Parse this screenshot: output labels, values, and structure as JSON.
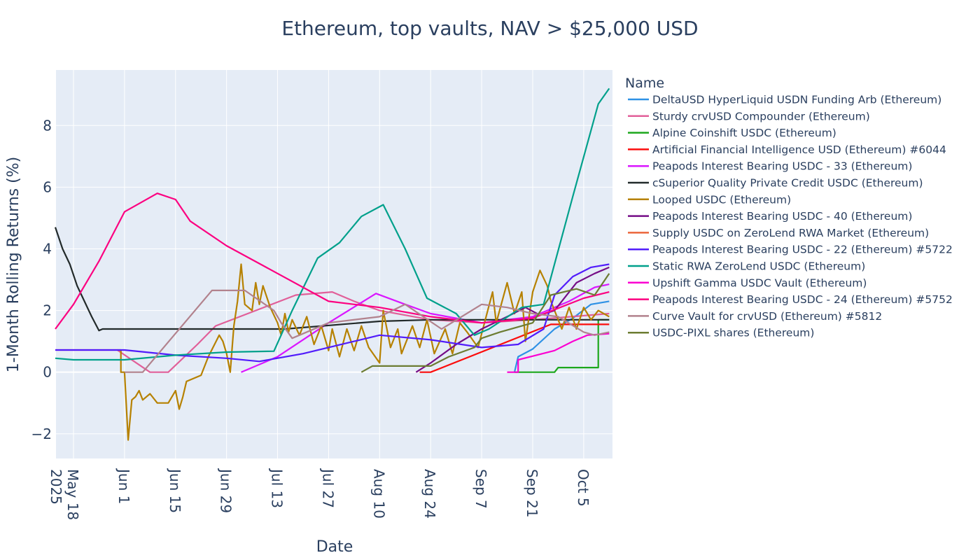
{
  "chart_data": {
    "type": "line",
    "title": "Ethereum, top vaults, NAV > $25,000 USD",
    "xlabel": "Date",
    "ylabel": "1-Month Rolling Returns (%)",
    "xlim": [
      "2025-05-13",
      "2025-10-13"
    ],
    "ylim": [
      -2.8,
      9.8
    ],
    "grid": true,
    "plot_background": "#E5ECF6",
    "legend": {
      "title": "Name",
      "placement": "right"
    },
    "x_ticks": [
      {
        "date": "2025-05-18",
        "label": "May 18",
        "sublabel": "2025"
      },
      {
        "date": "2025-06-01",
        "label": "Jun 1"
      },
      {
        "date": "2025-06-15",
        "label": "Jun 15"
      },
      {
        "date": "2025-06-29",
        "label": "Jun 29"
      },
      {
        "date": "2025-07-13",
        "label": "Jul 13"
      },
      {
        "date": "2025-07-27",
        "label": "Jul 27"
      },
      {
        "date": "2025-08-10",
        "label": "Aug 10"
      },
      {
        "date": "2025-08-24",
        "label": "Aug 24"
      },
      {
        "date": "2025-09-07",
        "label": "Sep 7"
      },
      {
        "date": "2025-09-21",
        "label": "Sep 21"
      },
      {
        "date": "2025-10-05",
        "label": "Oct 5"
      }
    ],
    "y_ticks": [
      {
        "value": -2,
        "label": "−2"
      },
      {
        "value": 0,
        "label": "0"
      },
      {
        "value": 2,
        "label": "2"
      },
      {
        "value": 4,
        "label": "4"
      },
      {
        "value": 6,
        "label": "6"
      },
      {
        "value": 8,
        "label": "8"
      }
    ],
    "series": [
      {
        "name": "DeltaUSD HyperLiquid USDN Funding Arb (Ethereum)",
        "color": "#2E91E5",
        "points": [
          [
            "2025-09-16",
            0
          ],
          [
            "2025-09-17",
            0.5
          ],
          [
            "2025-09-21",
            0.75
          ],
          [
            "2025-09-27",
            1.4
          ],
          [
            "2025-10-02",
            1.75
          ],
          [
            "2025-10-07",
            2.2
          ],
          [
            "2025-10-12",
            2.3
          ]
        ]
      },
      {
        "name": "Sturdy crvUSD Compounder (Ethereum)",
        "color": "#E15F99",
        "points": [
          [
            "2025-05-13",
            0.72
          ],
          [
            "2025-05-30",
            0.72
          ],
          [
            "2025-06-08",
            0
          ],
          [
            "2025-06-13",
            0
          ],
          [
            "2025-06-21",
            0.9
          ],
          [
            "2025-06-26",
            1.5
          ],
          [
            "2025-07-07",
            2.0
          ],
          [
            "2025-07-18",
            2.5
          ],
          [
            "2025-07-28",
            2.6
          ],
          [
            "2025-08-03",
            2.3
          ],
          [
            "2025-08-10",
            2.0
          ],
          [
            "2025-08-24",
            1.7
          ],
          [
            "2025-09-07",
            1.6
          ],
          [
            "2025-09-21",
            1.7
          ],
          [
            "2025-10-12",
            1.9
          ]
        ]
      },
      {
        "name": "Alpine Coinshift USDC (Ethereum)",
        "color": "#1CA71C",
        "points": [
          [
            "2025-09-16",
            0
          ],
          [
            "2025-09-27",
            0
          ],
          [
            "2025-09-28",
            0.15
          ],
          [
            "2025-10-09",
            0.15
          ],
          [
            "2025-10-09",
            1.7
          ],
          [
            "2025-10-12",
            1.7
          ]
        ]
      },
      {
        "name": "Artificial Financial Intelligence USD (Ethereum) #6044",
        "color": "#FB0D0D",
        "points": [
          [
            "2025-08-21",
            0
          ],
          [
            "2025-08-24",
            0
          ],
          [
            "2025-09-26",
            1.55
          ],
          [
            "2025-10-12",
            1.55
          ]
        ]
      },
      {
        "name": "Peapods Interest Bearing USDC - 33 (Ethereum)",
        "color": "#DA16FF",
        "points": [
          [
            "2025-07-03",
            0
          ],
          [
            "2025-07-13",
            0.5
          ],
          [
            "2025-07-27",
            1.6
          ],
          [
            "2025-08-09",
            2.55
          ],
          [
            "2025-08-17",
            2.2
          ],
          [
            "2025-08-24",
            1.9
          ],
          [
            "2025-09-07",
            1.6
          ],
          [
            "2025-09-21",
            1.8
          ],
          [
            "2025-10-01",
            2.3
          ],
          [
            "2025-10-08",
            2.75
          ],
          [
            "2025-10-12",
            2.85
          ]
        ]
      },
      {
        "name": "cSuperior Quality Private Credit USDC (Ethereum)",
        "color": "#222A2A",
        "points": [
          [
            "2025-05-13",
            4.7
          ],
          [
            "2025-05-15",
            4.0
          ],
          [
            "2025-05-17",
            3.5
          ],
          [
            "2025-05-19",
            2.8
          ],
          [
            "2025-05-21",
            2.3
          ],
          [
            "2025-05-23",
            1.8
          ],
          [
            "2025-05-25",
            1.35
          ],
          [
            "2025-05-26",
            1.4
          ],
          [
            "2025-07-15",
            1.4
          ],
          [
            "2025-08-10",
            1.65
          ],
          [
            "2025-08-24",
            1.7
          ],
          [
            "2025-10-12",
            1.7
          ]
        ]
      },
      {
        "name": "Looped USDC (Ethereum)",
        "color": "#B68100",
        "points": [
          [
            "2025-05-30",
            0.72
          ],
          [
            "2025-05-31",
            0.72
          ],
          [
            "2025-05-31",
            0
          ],
          [
            "2025-06-01",
            0
          ],
          [
            "2025-06-02",
            -2.2
          ],
          [
            "2025-06-03",
            -0.9
          ],
          [
            "2025-06-04",
            -0.8
          ],
          [
            "2025-06-05",
            -0.6
          ],
          [
            "2025-06-06",
            -0.9
          ],
          [
            "2025-06-08",
            -0.7
          ],
          [
            "2025-06-10",
            -1.0
          ],
          [
            "2025-06-13",
            -1.0
          ],
          [
            "2025-06-15",
            -0.6
          ],
          [
            "2025-06-16",
            -1.2
          ],
          [
            "2025-06-17",
            -0.8
          ],
          [
            "2025-06-18",
            -0.3
          ],
          [
            "2025-06-22",
            -0.1
          ],
          [
            "2025-06-24",
            0.5
          ],
          [
            "2025-06-27",
            1.2
          ],
          [
            "2025-06-28",
            1.0
          ],
          [
            "2025-06-29",
            0.6
          ],
          [
            "2025-06-30",
            0
          ],
          [
            "2025-07-01",
            1.5
          ],
          [
            "2025-07-02",
            2.3
          ],
          [
            "2025-07-03",
            3.5
          ],
          [
            "2025-07-04",
            2.2
          ],
          [
            "2025-07-06",
            2.0
          ],
          [
            "2025-07-07",
            2.9
          ],
          [
            "2025-07-08",
            2.2
          ],
          [
            "2025-07-09",
            2.8
          ],
          [
            "2025-07-11",
            2.1
          ],
          [
            "2025-07-13",
            1.6
          ],
          [
            "2025-07-14",
            1.2
          ],
          [
            "2025-07-15",
            1.9
          ],
          [
            "2025-07-16",
            1.3
          ],
          [
            "2025-07-17",
            1.7
          ],
          [
            "2025-07-19",
            1.2
          ],
          [
            "2025-07-21",
            1.8
          ],
          [
            "2025-07-23",
            0.9
          ],
          [
            "2025-07-25",
            1.5
          ],
          [
            "2025-07-27",
            0.7
          ],
          [
            "2025-07-28",
            1.4
          ],
          [
            "2025-07-30",
            0.5
          ],
          [
            "2025-08-01",
            1.4
          ],
          [
            "2025-08-03",
            0.7
          ],
          [
            "2025-08-05",
            1.5
          ],
          [
            "2025-08-07",
            0.8
          ],
          [
            "2025-08-10",
            0.3
          ],
          [
            "2025-08-11",
            2.0
          ],
          [
            "2025-08-13",
            0.8
          ],
          [
            "2025-08-15",
            1.4
          ],
          [
            "2025-08-16",
            0.6
          ],
          [
            "2025-08-19",
            1.5
          ],
          [
            "2025-08-21",
            0.8
          ],
          [
            "2025-08-23",
            1.7
          ],
          [
            "2025-08-25",
            0.6
          ],
          [
            "2025-08-28",
            1.4
          ],
          [
            "2025-08-30",
            0.6
          ],
          [
            "2025-09-01",
            1.6
          ],
          [
            "2025-09-03",
            1.3
          ],
          [
            "2025-09-06",
            0.8
          ],
          [
            "2025-09-10",
            2.6
          ],
          [
            "2025-09-11",
            1.6
          ],
          [
            "2025-09-14",
            2.9
          ],
          [
            "2025-09-16",
            1.9
          ],
          [
            "2025-09-18",
            2.6
          ],
          [
            "2025-09-19",
            1.0
          ],
          [
            "2025-09-21",
            2.6
          ],
          [
            "2025-09-23",
            3.3
          ],
          [
            "2025-09-25",
            2.8
          ],
          [
            "2025-09-26",
            2.3
          ],
          [
            "2025-09-29",
            1.4
          ],
          [
            "2025-10-01",
            2.1
          ],
          [
            "2025-10-03",
            1.4
          ],
          [
            "2025-10-05",
            2.1
          ],
          [
            "2025-10-07",
            1.7
          ],
          [
            "2025-10-09",
            2.0
          ],
          [
            "2025-10-12",
            1.8
          ]
        ]
      },
      {
        "name": "Peapods Interest Bearing USDC - 40 (Ethereum)",
        "color": "#750D86",
        "points": [
          [
            "2025-08-20",
            0
          ],
          [
            "2025-08-24",
            0.3
          ],
          [
            "2025-08-31",
            0.9
          ],
          [
            "2025-09-07",
            1.4
          ],
          [
            "2025-09-14",
            1.8
          ],
          [
            "2025-09-19",
            2.1
          ],
          [
            "2025-09-23",
            1.85
          ],
          [
            "2025-09-27",
            2.0
          ],
          [
            "2025-10-03",
            2.9
          ],
          [
            "2025-10-08",
            3.2
          ],
          [
            "2025-10-12",
            3.4
          ]
        ]
      },
      {
        "name": "Supply USDC on ZeroLend RWA Market (Ethereum)",
        "color": "#EB663B",
        "points": []
      },
      {
        "name": "Peapods Interest Bearing USDC - 22 (Ethereum) #5722",
        "color": "#511CFB",
        "points": [
          [
            "2025-05-13",
            0.72
          ],
          [
            "2025-06-01",
            0.72
          ],
          [
            "2025-06-15",
            0.55
          ],
          [
            "2025-06-29",
            0.45
          ],
          [
            "2025-07-08",
            0.35
          ],
          [
            "2025-07-20",
            0.6
          ],
          [
            "2025-08-03",
            1.0
          ],
          [
            "2025-08-10",
            1.2
          ],
          [
            "2025-08-24",
            1.05
          ],
          [
            "2025-09-07",
            0.8
          ],
          [
            "2025-09-17",
            0.9
          ],
          [
            "2025-09-24",
            1.4
          ],
          [
            "2025-09-27",
            2.5
          ],
          [
            "2025-10-02",
            3.1
          ],
          [
            "2025-10-07",
            3.4
          ],
          [
            "2025-10-12",
            3.5
          ]
        ]
      },
      {
        "name": "Static RWA ZeroLend USDC (Ethereum)",
        "color": "#00A08B",
        "points": [
          [
            "2025-05-13",
            0.45
          ],
          [
            "2025-05-18",
            0.4
          ],
          [
            "2025-06-01",
            0.4
          ],
          [
            "2025-06-15",
            0.55
          ],
          [
            "2025-06-29",
            0.65
          ],
          [
            "2025-07-12",
            0.68
          ],
          [
            "2025-07-17",
            2.0
          ],
          [
            "2025-07-24",
            3.7
          ],
          [
            "2025-07-30",
            4.2
          ],
          [
            "2025-08-05",
            5.05
          ],
          [
            "2025-08-11",
            5.43
          ],
          [
            "2025-08-17",
            4.0
          ],
          [
            "2025-08-23",
            2.4
          ],
          [
            "2025-08-31",
            1.9
          ],
          [
            "2025-09-05",
            1.2
          ],
          [
            "2025-09-09",
            1.4
          ],
          [
            "2025-09-18",
            2.1
          ],
          [
            "2025-09-24",
            2.2
          ],
          [
            "2025-10-02",
            5.7
          ],
          [
            "2025-10-09",
            8.7
          ],
          [
            "2025-10-12",
            9.2
          ]
        ]
      },
      {
        "name": "Upshift Gamma USDC Vault (Ethereum)",
        "color": "#FB00D1",
        "points": [
          [
            "2025-09-14",
            0
          ],
          [
            "2025-09-17",
            0
          ],
          [
            "2025-09-17",
            0.4
          ],
          [
            "2025-09-22",
            0.55
          ],
          [
            "2025-09-27",
            0.7
          ],
          [
            "2025-10-02",
            1.0
          ],
          [
            "2025-10-06",
            1.2
          ],
          [
            "2025-10-12",
            1.25
          ]
        ]
      },
      {
        "name": "Peapods Interest Bearing USDC - 24 (Ethereum) #5752",
        "color": "#FC0080",
        "points": [
          [
            "2025-05-13",
            1.4
          ],
          [
            "2025-05-18",
            2.2
          ],
          [
            "2025-05-25",
            3.6
          ],
          [
            "2025-06-01",
            5.2
          ],
          [
            "2025-06-10",
            5.8
          ],
          [
            "2025-06-15",
            5.6
          ],
          [
            "2025-06-19",
            4.9
          ],
          [
            "2025-06-29",
            4.1
          ],
          [
            "2025-07-13",
            3.2
          ],
          [
            "2025-07-27",
            2.3
          ],
          [
            "2025-08-10",
            2.1
          ],
          [
            "2025-08-24",
            1.8
          ],
          [
            "2025-09-07",
            1.6
          ],
          [
            "2025-09-21",
            1.75
          ],
          [
            "2025-10-05",
            2.4
          ],
          [
            "2025-10-12",
            2.6
          ]
        ]
      },
      {
        "name": "Curve Vault for crvUSD (Ethereum) #5812",
        "color": "#B2828D",
        "points": [
          [
            "2025-06-01",
            0
          ],
          [
            "2025-06-06",
            0
          ],
          [
            "2025-06-25",
            2.65
          ],
          [
            "2025-07-04",
            2.65
          ],
          [
            "2025-07-12",
            2.0
          ],
          [
            "2025-07-14",
            1.6
          ],
          [
            "2025-07-17",
            1.1
          ],
          [
            "2025-07-27",
            1.6
          ],
          [
            "2025-08-10",
            1.8
          ],
          [
            "2025-08-17",
            2.2
          ],
          [
            "2025-08-27",
            1.4
          ],
          [
            "2025-09-07",
            2.2
          ],
          [
            "2025-09-14",
            2.1
          ],
          [
            "2025-09-21",
            1.9
          ],
          [
            "2025-09-28",
            1.8
          ],
          [
            "2025-10-05",
            1.3
          ],
          [
            "2025-10-08",
            1.2
          ],
          [
            "2025-10-12",
            1.3
          ]
        ]
      },
      {
        "name": "USDC-PIXL shares (Ethereum)",
        "color": "#6C7C32",
        "points": [
          [
            "2025-08-05",
            0
          ],
          [
            "2025-08-08",
            0.2
          ],
          [
            "2025-08-24",
            0.2
          ],
          [
            "2025-08-29",
            0.5
          ],
          [
            "2025-09-05",
            0.8
          ],
          [
            "2025-09-07",
            1.1
          ],
          [
            "2025-09-12",
            1.3
          ],
          [
            "2025-09-21",
            1.6
          ],
          [
            "2025-09-26",
            2.5
          ],
          [
            "2025-10-03",
            2.7
          ],
          [
            "2025-10-08",
            2.5
          ],
          [
            "2025-10-12",
            3.2
          ]
        ]
      }
    ]
  }
}
